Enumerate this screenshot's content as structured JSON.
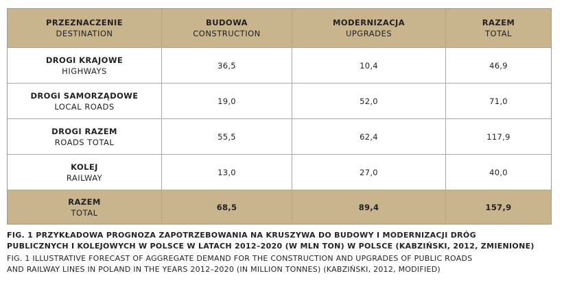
{
  "table": {
    "header": [
      {
        "pl": "PRZEZNACZENIE",
        "en": "DESTINATION"
      },
      {
        "pl": "BUDOWA",
        "en": "CONSTRUCTION"
      },
      {
        "pl": "MODERNIZACJA",
        "en": "UPGRADES"
      },
      {
        "pl": "RAZEM",
        "en": "TOTAL"
      }
    ],
    "rows": [
      {
        "pl": "DROGI KRAJOWE",
        "en": "HIGHWAYS",
        "construction": "36,5",
        "upgrades": "10,4",
        "total": "46,9"
      },
      {
        "pl": "DROGI SAMORZĄDOWE",
        "en": "LOCAL ROADS",
        "construction": "19,0",
        "upgrades": "52,0",
        "total": "71,0"
      },
      {
        "pl": "DROGI RAZEM",
        "en": "ROADS TOTAL",
        "construction": "55,5",
        "upgrades": "62,4",
        "total": "117,9"
      },
      {
        "pl": "KOLEJ",
        "en": "RAILWAY",
        "construction": "13,0",
        "upgrades": "27,0",
        "total": "40,0"
      }
    ],
    "total_row": {
      "pl": "RAZEM",
      "en": "TOTAL",
      "construction": "68,5",
      "upgrades": "89,4",
      "total": "157,9"
    }
  },
  "caption": {
    "pl_line1": "FIG. 1 PRZYKŁADOWA PROGNOZA ZAPOTRZEBOWANIA NA KRUSZYWA DO BUDOWY I MODERNIZACJI DRÓG",
    "pl_line2": "PUBLICZNYCH I KOLEJOWYCH W POLSCE W LATACH 2012–2020 (W MLN TON) W POLSCE (KABZIŃSKI, 2012, ZMIENIONE)",
    "en_line1": "FIG. 1 ILLUSTRATIVE FORECAST OF AGGREGATE DEMAND FOR THE CONSTRUCTION AND UPGRADES OF PUBLIC ROADS",
    "en_line2": "AND RAILWAY LINES IN POLAND IN THE YEARS 2012–2020 (IN MILLION TONNES) (KABZIŃSKI, 2012, MODIFIED)"
  },
  "colors": {
    "header_bg": "#c8b48d",
    "border": "#a7a7a7"
  }
}
